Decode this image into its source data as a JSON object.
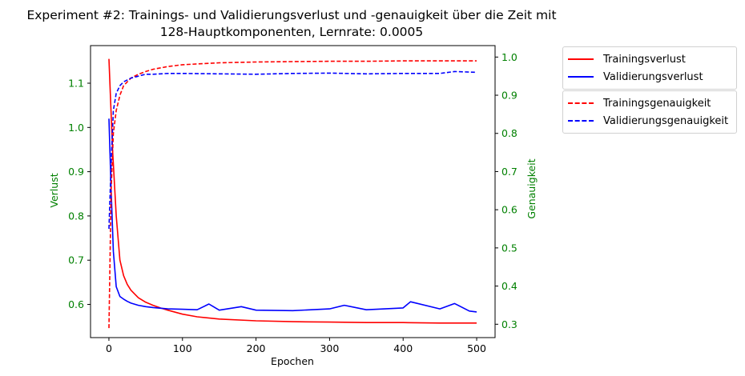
{
  "chart_data": {
    "type": "line",
    "title_line1": "Experiment #2: Trainings- und Validierungsverlust und -genauigkeit über die Zeit mit",
    "title_line2": "128-Hauptkomponenten, Lernrate: 0.0005",
    "xlabel": "Epochen",
    "ylabel_left": "Verlust",
    "ylabel_right": "Genauigkeit",
    "xlim": [
      -25,
      525
    ],
    "ylim_left": [
      0.525,
      1.185
    ],
    "ylim_right": [
      0.265,
      1.03
    ],
    "x_ticks": [
      0,
      100,
      200,
      300,
      400,
      500
    ],
    "x_tick_labels": [
      "0",
      "100",
      "200",
      "300",
      "400",
      "500"
    ],
    "y_left_ticks": [
      0.6,
      0.7,
      0.8,
      0.9,
      1.0,
      1.1
    ],
    "y_left_tick_labels": [
      "0.6",
      "0.7",
      "0.8",
      "0.9",
      "1.0",
      "1.1"
    ],
    "y_right_ticks": [
      0.3,
      0.4,
      0.5,
      0.6,
      0.7,
      0.8,
      0.9,
      1.0
    ],
    "y_right_tick_labels": [
      "0.3",
      "0.4",
      "0.5",
      "0.6",
      "0.7",
      "0.8",
      "0.9",
      "1.0"
    ],
    "axis_label_color": "#008000",
    "grid": false,
    "legend_placement": "right, outside plot",
    "series": [
      {
        "name": "Trainingsverlust",
        "axis": "left",
        "style": "solid",
        "color": "#ff0000",
        "x": [
          0,
          5,
          10,
          15,
          20,
          25,
          30,
          40,
          50,
          60,
          70,
          80,
          100,
          120,
          150,
          200,
          250,
          300,
          350,
          400,
          450,
          500
        ],
        "y": [
          1.155,
          0.95,
          0.8,
          0.7,
          0.665,
          0.645,
          0.632,
          0.615,
          0.605,
          0.598,
          0.592,
          0.587,
          0.578,
          0.572,
          0.567,
          0.563,
          0.561,
          0.56,
          0.559,
          0.559,
          0.558,
          0.558
        ]
      },
      {
        "name": "Validierungsverlust",
        "axis": "left",
        "style": "solid",
        "color": "#0000ff",
        "x": [
          0,
          3,
          6,
          10,
          15,
          20,
          25,
          30,
          40,
          50,
          60,
          80,
          100,
          120,
          136,
          150,
          180,
          200,
          250,
          300,
          320,
          350,
          400,
          410,
          450,
          470,
          490,
          500
        ],
        "y": [
          1.02,
          0.86,
          0.72,
          0.64,
          0.618,
          0.612,
          0.607,
          0.603,
          0.598,
          0.595,
          0.593,
          0.59,
          0.589,
          0.588,
          0.601,
          0.587,
          0.595,
          0.587,
          0.586,
          0.59,
          0.598,
          0.588,
          0.592,
          0.606,
          0.59,
          0.602,
          0.585,
          0.583
        ]
      },
      {
        "name": "Trainingsgenauigkeit",
        "axis": "right",
        "style": "dashed",
        "color": "#ff0000",
        "x": [
          0,
          3,
          6,
          10,
          15,
          20,
          30,
          40,
          50,
          60,
          80,
          100,
          150,
          200,
          250,
          300,
          350,
          400,
          450,
          500
        ],
        "y": [
          0.29,
          0.65,
          0.8,
          0.86,
          0.9,
          0.925,
          0.945,
          0.955,
          0.962,
          0.968,
          0.975,
          0.98,
          0.985,
          0.987,
          0.988,
          0.989,
          0.989,
          0.99,
          0.99,
          0.99
        ]
      },
      {
        "name": "Validierungsgenauigkeit",
        "axis": "right",
        "style": "dashed",
        "color": "#0000ff",
        "x": [
          0,
          3,
          6,
          10,
          15,
          20,
          30,
          40,
          50,
          60,
          80,
          100,
          150,
          200,
          250,
          300,
          350,
          400,
          450,
          470,
          500
        ],
        "y": [
          0.55,
          0.72,
          0.86,
          0.905,
          0.925,
          0.935,
          0.945,
          0.95,
          0.955,
          0.955,
          0.957,
          0.957,
          0.956,
          0.955,
          0.957,
          0.958,
          0.956,
          0.957,
          0.957,
          0.962,
          0.96
        ]
      }
    ]
  }
}
